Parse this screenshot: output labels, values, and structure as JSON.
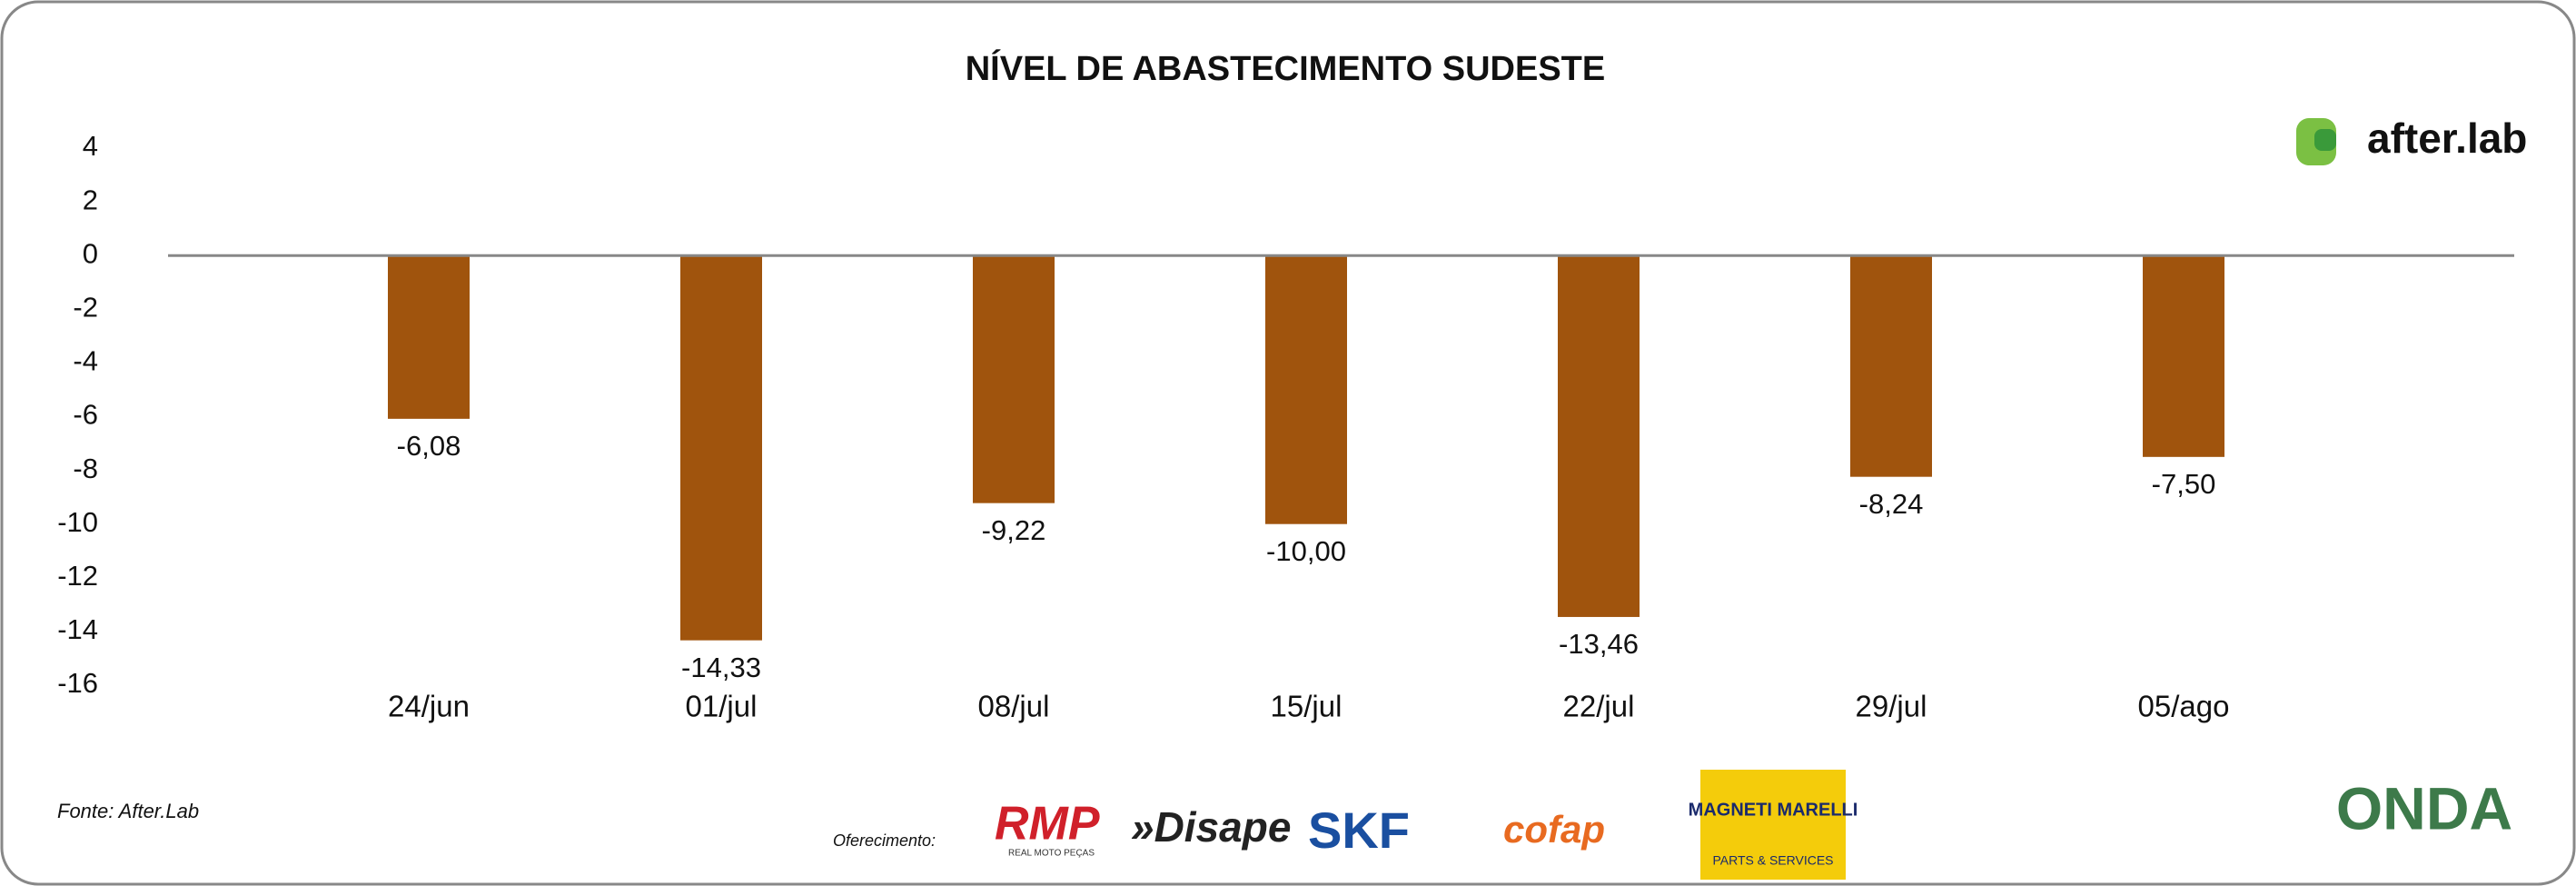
{
  "chart_data": {
    "type": "bar",
    "title": "NÍVEL DE ABASTECIMENTO SUDESTE",
    "categories": [
      "24/jun",
      "01/jul",
      "08/jul",
      "15/jul",
      "22/jul",
      "29/jul",
      "05/ago"
    ],
    "values": [
      -6.08,
      -14.33,
      -9.22,
      -10.0,
      -13.46,
      -8.24,
      -7.5
    ],
    "value_labels": [
      "-6,08",
      "-14,33",
      "-9,22",
      "-10,00",
      "-13,46",
      "-8,24",
      "-7,50"
    ],
    "color": "#a0540d",
    "ylim": [
      -16,
      4
    ],
    "yticks": [
      -16,
      -14,
      -12,
      -10,
      -8,
      -6,
      -4,
      -2,
      0,
      2,
      4
    ],
    "grid": false
  },
  "source": "Fonte: After.Lab",
  "sponsor_label": "Oferecimento:",
  "brand": "after.lab",
  "logos": {
    "rmp": "RMP",
    "rmp_sub": "REAL MOTO PEÇAS",
    "disape": "»Disape",
    "skf": "SKF",
    "cofap": "cofap",
    "magneti": "MAGNETI MARELLI",
    "magneti_sub": "PARTS & SERVICES",
    "onda": "ONDA"
  }
}
